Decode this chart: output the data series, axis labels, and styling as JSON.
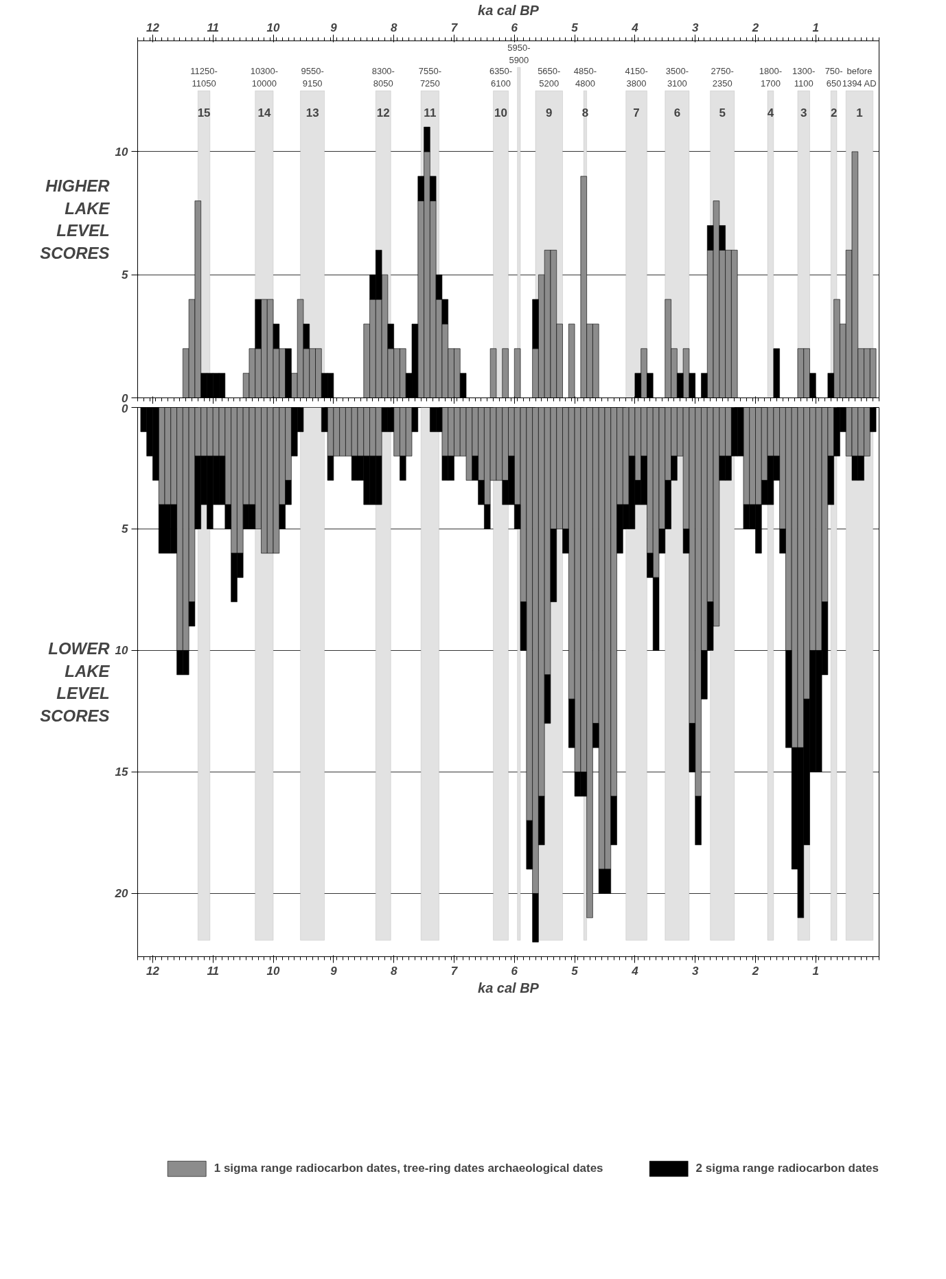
{
  "chart_data": [
    {
      "type": "bar",
      "stacked": true,
      "ylabel": "HIGHER LAKE LEVEL SCORES",
      "x2label": "ka cal BP",
      "xlim": [
        12.25,
        -0.05
      ],
      "xticks": [
        12,
        11,
        10,
        9,
        8,
        7,
        6,
        5,
        4,
        3,
        2,
        1
      ],
      "x2lim": [
        12.25,
        -0.05
      ],
      "x2ticks": [
        12,
        11,
        10,
        9,
        8,
        7,
        6,
        5,
        4,
        3,
        2,
        1
      ],
      "ylim": [
        0,
        14.5
      ],
      "yticks": [
        0,
        5,
        10
      ],
      "tick_labels": "y",
      "grid": "y",
      "x": [
        11.45,
        11.35,
        11.25,
        11.15,
        11.05,
        10.95,
        10.85,
        10.45,
        10.35,
        10.25,
        10.15,
        10.05,
        9.95,
        9.85,
        9.75,
        9.65,
        9.55,
        9.45,
        9.35,
        9.25,
        9.15,
        9.05,
        8.45,
        8.35,
        8.25,
        8.15,
        8.05,
        7.95,
        7.85,
        7.75,
        7.65,
        7.55,
        7.45,
        7.35,
        7.25,
        7.15,
        7.05,
        6.95,
        6.85,
        6.35,
        6.15,
        5.95,
        5.65,
        5.55,
        5.45,
        5.35,
        5.25,
        5.05,
        4.85,
        4.75,
        4.65,
        3.95,
        3.85,
        3.75,
        3.45,
        3.35,
        3.25,
        3.15,
        3.05,
        2.85,
        2.75,
        2.65,
        2.55,
        2.45,
        2.35,
        1.65,
        1.25,
        1.15,
        1.05,
        0.75,
        0.65,
        0.55,
        0.45,
        0.35,
        0.25,
        0.15,
        0.05
      ],
      "series": [
        {
          "color": "#8c8c8c",
          "values": [
            2,
            4,
            8,
            0,
            0,
            0,
            0,
            1,
            2,
            2,
            4,
            4,
            2,
            2,
            0,
            1,
            4,
            2,
            2,
            2,
            0,
            0,
            3,
            4,
            4,
            5,
            2,
            2,
            2,
            0,
            0,
            8,
            10,
            8,
            4,
            3,
            2,
            2,
            0,
            2,
            2,
            2,
            2,
            5,
            6,
            6,
            3,
            3,
            9,
            3,
            3,
            0,
            2,
            0,
            4,
            2,
            0,
            2,
            0,
            0,
            6,
            8,
            6,
            6,
            6,
            0,
            2,
            2,
            0,
            0,
            4,
            3,
            6,
            10,
            2,
            2,
            2
          ]
        },
        {
          "color": "#000000",
          "values": [
            0,
            0,
            0,
            1,
            1,
            1,
            1,
            0,
            0,
            2,
            0,
            0,
            1,
            0,
            2,
            0,
            0,
            1,
            0,
            0,
            1,
            1,
            0,
            1,
            2,
            0,
            1,
            0,
            0,
            1,
            3,
            1,
            1,
            1,
            1,
            1,
            0,
            0,
            1,
            0,
            0,
            0,
            2,
            0,
            0,
            0,
            0,
            0,
            0,
            0,
            0,
            1,
            0,
            1,
            0,
            0,
            1,
            0,
            1,
            1,
            1,
            0,
            1,
            0,
            0,
            2,
            0,
            0,
            1,
            1,
            0,
            0,
            0,
            0,
            0,
            0,
            0
          ]
        }
      ],
      "bands": [
        {
          "axis": "x",
          "from": 11.25,
          "to": 11.05,
          "label": "11250-11050",
          "color": "#e2e2e2"
        },
        {
          "axis": "x",
          "from": 10.3,
          "to": 10.0,
          "label": "10300-10000",
          "color": "#e2e2e2"
        },
        {
          "axis": "x",
          "from": 9.55,
          "to": 9.15,
          "label": "9550-9150",
          "color": "#e2e2e2"
        },
        {
          "axis": "x",
          "from": 8.3,
          "to": 8.05,
          "label": "8300-8050",
          "color": "#e2e2e2"
        },
        {
          "axis": "x",
          "from": 7.55,
          "to": 7.25,
          "label": "7550-7250",
          "color": "#e2e2e2"
        },
        {
          "axis": "x",
          "from": 6.35,
          "to": 6.1,
          "label": "6350-6100",
          "color": "#e2e2e2"
        },
        {
          "axis": "x",
          "from": 5.65,
          "to": 5.2,
          "label": "5650-5200",
          "color": "#e2e2e2"
        },
        {
          "axis": "x",
          "from": 4.85,
          "to": 4.8,
          "label": "4850-4800",
          "color": "#e2e2e2"
        },
        {
          "axis": "x",
          "from": 4.15,
          "to": 3.8,
          "label": "4150-3800",
          "color": "#e2e2e2"
        },
        {
          "axis": "x",
          "from": 3.5,
          "to": 3.1,
          "label": "3500-3100",
          "color": "#e2e2e2"
        },
        {
          "axis": "x",
          "from": 2.75,
          "to": 2.35,
          "label": "2750-2350",
          "color": "#e2e2e2"
        },
        {
          "axis": "x",
          "from": 1.8,
          "to": 1.7,
          "label": "1800-1700",
          "color": "#e2e2e2"
        },
        {
          "axis": "x",
          "from": 1.3,
          "to": 1.1,
          "label": "1300-1100",
          "color": "#e2e2e2"
        },
        {
          "axis": "x",
          "from": 0.75,
          "to": 0.65,
          "label": "750-650",
          "color": "#e2e2e2"
        },
        {
          "axis": "x",
          "from": 0.5,
          "to": 0.05,
          "label": "before 1394 AD",
          "color": "#e2e2e2"
        },
        {
          "axis": "x",
          "from": 5.95,
          "to": 5.9,
          "label": "5950-5900",
          "color": "#e2e2e2"
        }
      ],
      "annotations": [
        "15",
        "14",
        "13",
        "12",
        "11",
        "10",
        "9",
        "8",
        "7",
        "6",
        "5",
        "4",
        "3",
        "2",
        "1"
      ]
    },
    {
      "type": "bar",
      "stacked": true,
      "ylabel": "LOWER LAKE LEVEL SCORES",
      "xlabel": "ka cal BP",
      "xlim": [
        12.25,
        -0.05
      ],
      "xticks": [
        12,
        11,
        10,
        9,
        8,
        7,
        6,
        5,
        4,
        3,
        2,
        1
      ],
      "ylim": [
        22.6,
        0
      ],
      "yticks": [
        0,
        5,
        10,
        15,
        20
      ],
      "grid": "y",
      "legend": "bottom",
      "x": [
        12.15,
        12.05,
        11.95,
        11.85,
        11.75,
        11.65,
        11.55,
        11.45,
        11.35,
        11.25,
        11.15,
        11.05,
        10.95,
        10.85,
        10.75,
        10.65,
        10.55,
        10.45,
        10.35,
        10.25,
        10.15,
        10.05,
        9.95,
        9.85,
        9.75,
        9.65,
        9.55,
        9.15,
        9.05,
        8.95,
        8.85,
        8.75,
        8.65,
        8.55,
        8.45,
        8.35,
        8.25,
        8.15,
        8.05,
        7.95,
        7.85,
        7.75,
        7.65,
        7.35,
        7.25,
        7.15,
        7.05,
        6.95,
        6.85,
        6.75,
        6.65,
        6.55,
        6.45,
        6.35,
        6.25,
        6.15,
        6.05,
        5.95,
        5.85,
        5.75,
        5.65,
        5.55,
        5.45,
        5.35,
        5.25,
        5.15,
        5.05,
        4.95,
        4.85,
        4.75,
        4.65,
        4.55,
        4.45,
        4.35,
        4.25,
        4.15,
        4.05,
        3.95,
        3.85,
        3.75,
        3.65,
        3.55,
        3.45,
        3.35,
        3.25,
        3.15,
        3.05,
        2.95,
        2.85,
        2.75,
        2.65,
        2.55,
        2.45,
        2.35,
        2.25,
        2.15,
        2.05,
        1.95,
        1.85,
        1.75,
        1.65,
        1.55,
        1.45,
        1.35,
        1.25,
        1.15,
        1.05,
        0.95,
        0.85,
        0.75,
        0.65,
        0.55,
        0.45,
        0.35,
        0.25,
        0.15,
        0.05
      ],
      "series": [
        {
          "name": "1 sigma range radiocarbon dates, tree-ring dates archaeological dates",
          "color": "#8c8c8c",
          "values": [
            0,
            0,
            0,
            4,
            4,
            4,
            10,
            10,
            8,
            2,
            2,
            2,
            2,
            2,
            4,
            6,
            6,
            4,
            4,
            5,
            6,
            6,
            6,
            4,
            3,
            0,
            0,
            0,
            2,
            2,
            2,
            2,
            2,
            2,
            2,
            2,
            2,
            0,
            0,
            2,
            2,
            2,
            0,
            0,
            0,
            2,
            2,
            2,
            2,
            3,
            2,
            3,
            4,
            3,
            3,
            3,
            2,
            4,
            8,
            17,
            20,
            16,
            11,
            5,
            5,
            5,
            12,
            15,
            15,
            21,
            13,
            19,
            19,
            16,
            4,
            4,
            2,
            3,
            2,
            6,
            7,
            5,
            3,
            2,
            2,
            5,
            13,
            16,
            10,
            8,
            9,
            2,
            2,
            0,
            0,
            4,
            4,
            4,
            3,
            2,
            2,
            5,
            10,
            14,
            14,
            12,
            10,
            10,
            8,
            2,
            0,
            0,
            2,
            2,
            2,
            2,
            0
          ]
        },
        {
          "name": "2 sigma range radiocarbon dates",
          "color": "#000000",
          "values": [
            1,
            2,
            3,
            2,
            2,
            2,
            1,
            1,
            1,
            3,
            2,
            3,
            2,
            2,
            1,
            2,
            1,
            1,
            1,
            0,
            0,
            0,
            0,
            1,
            1,
            2,
            1,
            1,
            1,
            0,
            0,
            0,
            1,
            1,
            2,
            2,
            2,
            1,
            1,
            0,
            1,
            0,
            1,
            1,
            1,
            1,
            1,
            0,
            0,
            0,
            1,
            1,
            1,
            0,
            0,
            1,
            2,
            1,
            2,
            2,
            2,
            2,
            2,
            3,
            0,
            1,
            2,
            1,
            1,
            0,
            1,
            1,
            1,
            2,
            2,
            1,
            3,
            1,
            2,
            1,
            3,
            1,
            2,
            1,
            0,
            1,
            2,
            2,
            2,
            2,
            0,
            1,
            1,
            2,
            2,
            1,
            1,
            2,
            1,
            2,
            1,
            1,
            4,
            5,
            7,
            6,
            5,
            5,
            3,
            2,
            2,
            1,
            0,
            1,
            1,
            0,
            1
          ]
        }
      ],
      "bands": [
        {
          "axis": "x",
          "from": 11.25,
          "to": 11.05,
          "color": "#e2e2e2"
        },
        {
          "axis": "x",
          "from": 10.3,
          "to": 10.0,
          "color": "#e2e2e2"
        },
        {
          "axis": "x",
          "from": 9.55,
          "to": 9.15,
          "color": "#e2e2e2"
        },
        {
          "axis": "x",
          "from": 8.3,
          "to": 8.05,
          "color": "#e2e2e2"
        },
        {
          "axis": "x",
          "from": 7.55,
          "to": 7.25,
          "color": "#e2e2e2"
        },
        {
          "axis": "x",
          "from": 6.35,
          "to": 6.1,
          "color": "#e2e2e2"
        },
        {
          "axis": "x",
          "from": 5.95,
          "to": 5.9,
          "color": "#e2e2e2"
        },
        {
          "axis": "x",
          "from": 5.65,
          "to": 5.2,
          "color": "#e2e2e2"
        },
        {
          "axis": "x",
          "from": 4.85,
          "to": 4.8,
          "color": "#e2e2e2"
        },
        {
          "axis": "x",
          "from": 4.15,
          "to": 3.8,
          "color": "#e2e2e2"
        },
        {
          "axis": "x",
          "from": 3.5,
          "to": 3.1,
          "color": "#e2e2e2"
        },
        {
          "axis": "x",
          "from": 2.75,
          "to": 2.35,
          "color": "#e2e2e2"
        },
        {
          "axis": "x",
          "from": 1.8,
          "to": 1.7,
          "color": "#e2e2e2"
        },
        {
          "axis": "x",
          "from": 1.3,
          "to": 1.1,
          "color": "#e2e2e2"
        },
        {
          "axis": "x",
          "from": 0.75,
          "to": 0.65,
          "color": "#e2e2e2"
        },
        {
          "axis": "x",
          "from": 0.5,
          "to": 0.05,
          "color": "#e2e2e2"
        }
      ]
    }
  ]
}
